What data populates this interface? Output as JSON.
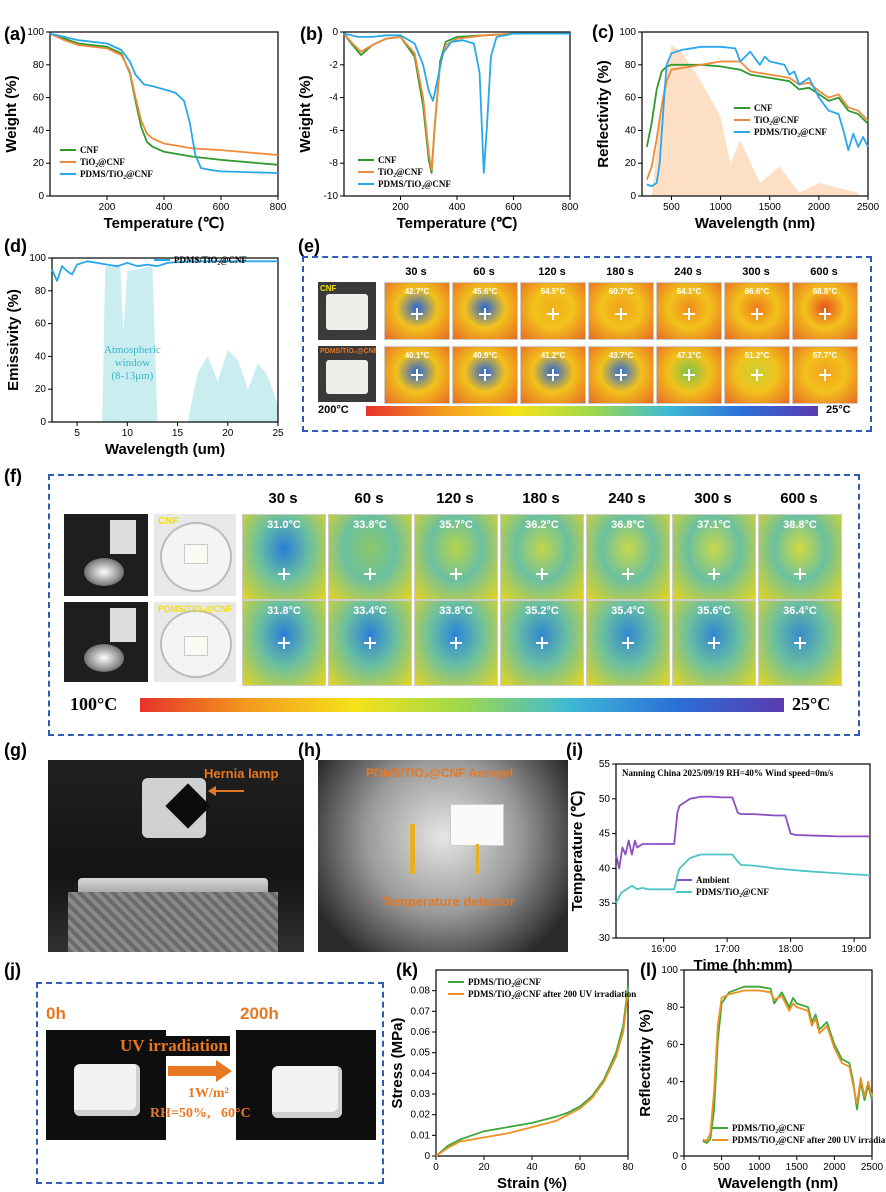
{
  "panels": {
    "a": "(a)",
    "b": "(b)",
    "c": "(c)",
    "d": "(d)",
    "e": "(e)",
    "f": "(f)",
    "g": "(g)",
    "h": "(h)",
    "i": "(i)",
    "j": "(j)",
    "k": "(k)",
    "l": "(l)"
  },
  "legend_names": {
    "cnf": "CNF",
    "tio2": "TiO₂@CNF",
    "pdms": "PDMS/TiO₂@CNF",
    "pdms_uv": "PDMS/TiO₂@CNF after 200 UV irradiation",
    "ambient": "Ambient"
  },
  "colors": {
    "cnf": "#2e9a2e",
    "tio2": "#f08a3a",
    "pdms": "#2aa7ea",
    "ambient": "#8a4fc2",
    "pdms_i": "#4fc4c4",
    "green_k": "#3aa83a",
    "orange_k": "#f09020"
  },
  "chart_data": [
    {
      "id": "a",
      "type": "line",
      "xlabel": "Temperature (℃)",
      "ylabel": "Weight (%)",
      "xlim": [
        0,
        800
      ],
      "ylim": [
        0,
        100
      ],
      "xticks": [
        200,
        400,
        600,
        800
      ],
      "yticks": [
        0,
        20,
        40,
        60,
        80,
        100
      ],
      "series": [
        {
          "name": "CNF",
          "key": "cnf",
          "x": [
            0,
            50,
            100,
            200,
            250,
            280,
            300,
            320,
            340,
            360,
            400,
            500,
            600,
            800
          ],
          "y": [
            99,
            96,
            93,
            91,
            87,
            75,
            58,
            42,
            33,
            30,
            27,
            24,
            22,
            19
          ]
        },
        {
          "name": "TiO₂@CNF",
          "key": "tio2",
          "x": [
            0,
            50,
            100,
            200,
            250,
            280,
            300,
            320,
            340,
            360,
            400,
            500,
            600,
            800
          ],
          "y": [
            99,
            95,
            92,
            90,
            86,
            76,
            60,
            46,
            38,
            35,
            32,
            29,
            28,
            25
          ]
        },
        {
          "name": "PDMS/TiO₂@CNF",
          "key": "pdms",
          "x": [
            0,
            50,
            100,
            200,
            250,
            280,
            300,
            330,
            360,
            400,
            440,
            470,
            490,
            510,
            530,
            560,
            600,
            800
          ],
          "y": [
            99,
            97,
            95,
            93,
            89,
            82,
            74,
            68,
            67,
            65,
            63,
            58,
            45,
            25,
            17,
            16,
            15,
            14
          ]
        }
      ]
    },
    {
      "id": "b",
      "type": "line",
      "xlabel": "Temperature (℃)",
      "ylabel": "Weight (%)",
      "xlim": [
        0,
        800
      ],
      "ylim": [
        -10,
        0
      ],
      "xticks": [
        200,
        400,
        600,
        800
      ],
      "yticks": [
        -10,
        -8,
        -6,
        -4,
        -2,
        0
      ],
      "series": [
        {
          "name": "CNF",
          "key": "cnf",
          "x": [
            0,
            30,
            60,
            100,
            150,
            200,
            250,
            280,
            300,
            310,
            320,
            340,
            360,
            400,
            500,
            600,
            800
          ],
          "y": [
            -0.1,
            -0.8,
            -1.4,
            -0.8,
            -0.4,
            -0.3,
            -1.5,
            -4.5,
            -7.8,
            -8.6,
            -6,
            -1.8,
            -0.6,
            -0.3,
            -0.2,
            -0.1,
            -0.1
          ]
        },
        {
          "name": "TiO₂@CNF",
          "key": "tio2",
          "x": [
            0,
            30,
            60,
            100,
            150,
            200,
            250,
            280,
            300,
            310,
            320,
            340,
            360,
            400,
            500,
            600,
            800
          ],
          "y": [
            -0.1,
            -0.7,
            -1.2,
            -0.8,
            -0.4,
            -0.3,
            -1.3,
            -4,
            -7.4,
            -8.4,
            -6,
            -2,
            -0.8,
            -0.4,
            -0.2,
            -0.1,
            -0.1
          ]
        },
        {
          "name": "PDMS/TiO₂@CNF",
          "key": "pdms",
          "x": [
            0,
            50,
            100,
            150,
            200,
            250,
            280,
            300,
            315,
            330,
            350,
            380,
            420,
            460,
            480,
            495,
            505,
            520,
            540,
            600,
            800
          ],
          "y": [
            -0.1,
            -0.3,
            -0.3,
            -0.2,
            -0.2,
            -0.7,
            -2,
            -3.6,
            -4.2,
            -3,
            -1.3,
            -0.6,
            -0.5,
            -0.7,
            -2.5,
            -8.6,
            -6,
            -1.5,
            -0.3,
            -0.1,
            -0.1
          ]
        }
      ]
    },
    {
      "id": "c",
      "type": "line",
      "xlabel": "Wavelength (nm)",
      "ylabel": "Reflectivity (%)",
      "xlim": [
        200,
        2500
      ],
      "ylim": [
        0,
        100
      ],
      "xticks": [
        500,
        1000,
        1500,
        2000,
        2500
      ],
      "yticks": [
        0,
        20,
        40,
        60,
        80,
        100
      ],
      "series": [
        {
          "name": "CNF",
          "key": "cnf",
          "x": [
            250,
            300,
            350,
            400,
            450,
            500,
            600,
            800,
            1000,
            1100,
            1200,
            1300,
            1500,
            1700,
            1800,
            1900,
            2000,
            2100,
            2200,
            2300,
            2400,
            2500
          ],
          "y": [
            30,
            45,
            65,
            76,
            79,
            80,
            80,
            80,
            79,
            78,
            77,
            74,
            72,
            70,
            65,
            66,
            62,
            58,
            60,
            52,
            50,
            44
          ]
        },
        {
          "name": "TiO₂@CNF",
          "key": "tio2",
          "x": [
            250,
            300,
            350,
            400,
            450,
            500,
            600,
            800,
            1000,
            1100,
            1200,
            1300,
            1500,
            1700,
            1800,
            1900,
            2000,
            2100,
            2200,
            2300,
            2400,
            2500
          ],
          "y": [
            10,
            18,
            35,
            55,
            70,
            77,
            78,
            80,
            82,
            82,
            82,
            76,
            74,
            72,
            68,
            69,
            64,
            60,
            62,
            54,
            52,
            46
          ]
        },
        {
          "name": "PDMS/TiO₂@CNF",
          "key": "pdms",
          "x": [
            250,
            300,
            350,
            380,
            420,
            450,
            500,
            600,
            800,
            1000,
            1150,
            1200,
            1300,
            1400,
            1450,
            1500,
            1650,
            1700,
            1750,
            1800,
            1900,
            2000,
            2100,
            2200,
            2250,
            2300,
            2350,
            2400,
            2450,
            2500
          ],
          "y": [
            7,
            6,
            8,
            20,
            55,
            80,
            87,
            89,
            91,
            91,
            90,
            82,
            88,
            80,
            85,
            82,
            80,
            74,
            76,
            68,
            72,
            60,
            52,
            50,
            40,
            28,
            38,
            30,
            36,
            30
          ]
        }
      ],
      "shade": "solar"
    },
    {
      "id": "d",
      "type": "line",
      "xlabel": "Wavelength (um)",
      "ylabel": "Emissivity (%)",
      "xlim": [
        2.5,
        25
      ],
      "ylim": [
        0,
        100
      ],
      "xticks": [
        5,
        10,
        15,
        20,
        25
      ],
      "yticks": [
        0,
        20,
        40,
        60,
        80,
        100
      ],
      "annotation": [
        "Atmospheric",
        "window",
        "(8-13μm)"
      ],
      "series": [
        {
          "name": "PDMS/TiO₂@CNF",
          "key": "pdms",
          "x": [
            2.5,
            3,
            3.5,
            4,
            4.5,
            5,
            6,
            7,
            8,
            9,
            10,
            11,
            12,
            13,
            14,
            16,
            18,
            20,
            22,
            24,
            25
          ],
          "y": [
            93,
            86,
            95,
            92,
            90,
            96,
            98,
            97,
            96,
            95,
            97,
            95,
            96,
            95,
            97,
            98,
            98,
            98,
            98,
            98,
            98
          ]
        }
      ]
    },
    {
      "id": "i",
      "type": "line",
      "xlabel": "Time (hh:mm)",
      "ylabel": "Temperature (℃)",
      "title": "Nanning China 2025/09/19 RH=40% Wind speed=0m/s",
      "xlim": [
        0,
        240
      ],
      "ylim": [
        30,
        55
      ],
      "xticks": [
        45,
        105,
        165,
        225
      ],
      "xticklabels": [
        "16:00",
        "17:00",
        "18:00",
        "19:00"
      ],
      "yticks": [
        30,
        35,
        40,
        45,
        50,
        55
      ],
      "series": [
        {
          "name": "Ambient",
          "key": "ambient",
          "x": [
            0,
            3,
            6,
            9,
            12,
            15,
            18,
            20,
            25,
            30,
            40,
            55,
            58,
            60,
            70,
            80,
            90,
            100,
            110,
            115,
            118,
            130,
            150,
            160,
            165,
            170,
            190,
            210,
            240
          ],
          "y": [
            42,
            40,
            43,
            42,
            44,
            42,
            44,
            43,
            43.5,
            43.5,
            43.5,
            43.5,
            48,
            49,
            50,
            50.3,
            50.3,
            50.2,
            50.2,
            48,
            47.8,
            47.8,
            47.6,
            47.6,
            45,
            44.8,
            44.7,
            44.6,
            44.6
          ]
        },
        {
          "name": "PDMS/TiO₂@CNF",
          "key": "pdms_i",
          "x": [
            0,
            5,
            10,
            15,
            20,
            25,
            30,
            40,
            55,
            58,
            60,
            70,
            80,
            90,
            100,
            110,
            115,
            118,
            130,
            150,
            165,
            180,
            200,
            220,
            240
          ],
          "y": [
            35,
            36.5,
            37,
            37.5,
            37,
            37.2,
            37,
            37,
            37,
            39,
            40,
            41.5,
            42,
            42,
            42,
            42,
            41,
            40.5,
            40.4,
            40,
            39.8,
            39.6,
            39.4,
            39.2,
            39
          ]
        }
      ]
    },
    {
      "id": "k",
      "type": "line",
      "xlabel": "Strain (%)",
      "ylabel": "Stress (MPa)",
      "xlim": [
        0,
        80
      ],
      "ylim": [
        0,
        0.09
      ],
      "xticks": [
        0,
        20,
        40,
        60,
        80
      ],
      "yticks": [
        0,
        0.01,
        0.02,
        0.03,
        0.04,
        0.05,
        0.06,
        0.07,
        0.08
      ],
      "series": [
        {
          "name": "PDMS/TiO₂@CNF",
          "key": "green_k",
          "x": [
            0,
            5,
            10,
            15,
            20,
            30,
            40,
            50,
            55,
            60,
            65,
            70,
            75,
            78,
            80
          ],
          "y": [
            0,
            0.005,
            0.008,
            0.01,
            0.012,
            0.014,
            0.016,
            0.019,
            0.021,
            0.024,
            0.029,
            0.037,
            0.05,
            0.063,
            0.082
          ]
        },
        {
          "name": "PDMS/TiO₂@CNF after 200 UV irradiation",
          "key": "orange_k",
          "x": [
            0,
            5,
            10,
            15,
            20,
            30,
            40,
            50,
            55,
            60,
            65,
            70,
            75,
            78,
            80
          ],
          "y": [
            0,
            0.004,
            0.007,
            0.008,
            0.009,
            0.011,
            0.014,
            0.017,
            0.02,
            0.023,
            0.028,
            0.036,
            0.048,
            0.06,
            0.079
          ]
        }
      ]
    },
    {
      "id": "l",
      "type": "line",
      "xlabel": "Wavelength (nm)",
      "ylabel": "Reflectivity (%)",
      "xlim": [
        0,
        2500
      ],
      "ylim": [
        0,
        100
      ],
      "xticks": [
        0,
        500,
        1000,
        1500,
        2000,
        2500
      ],
      "yticks": [
        0,
        20,
        40,
        60,
        80,
        100
      ],
      "series": [
        {
          "name": "PDMS/TiO₂@CNF",
          "key": "green_k",
          "x": [
            250,
            300,
            350,
            400,
            450,
            500,
            600,
            800,
            1000,
            1150,
            1200,
            1300,
            1400,
            1450,
            1500,
            1650,
            1700,
            1750,
            1800,
            1900,
            2000,
            2100,
            2200,
            2250,
            2300,
            2350,
            2400,
            2450,
            2500
          ],
          "y": [
            8,
            7,
            9,
            25,
            62,
            82,
            88,
            91,
            91,
            90,
            82,
            88,
            80,
            85,
            82,
            80,
            72,
            76,
            68,
            72,
            60,
            52,
            50,
            40,
            25,
            40,
            30,
            38,
            30
          ]
        },
        {
          "name": "PDMS/TiO₂@CNF after 200 UV irradiation",
          "key": "orange_k",
          "x": [
            250,
            300,
            350,
            400,
            450,
            500,
            600,
            800,
            1000,
            1150,
            1200,
            1300,
            1400,
            1450,
            1500,
            1650,
            1700,
            1750,
            1800,
            1900,
            2000,
            2100,
            2200,
            2250,
            2300,
            2350,
            2400,
            2450,
            2500
          ],
          "y": [
            9,
            8,
            12,
            35,
            70,
            85,
            87,
            89,
            89,
            88,
            84,
            86,
            78,
            82,
            80,
            78,
            70,
            74,
            66,
            70,
            58,
            50,
            48,
            38,
            28,
            42,
            32,
            40,
            32
          ]
        }
      ]
    }
  ],
  "panel_e": {
    "times": [
      "30 s",
      "60 s",
      "120 s",
      "180 s",
      "240 s",
      "300 s",
      "600 s"
    ],
    "row1_sample": "CNF",
    "row2_sample": "PDMS/TiO₂@CNF",
    "row1_temps": [
      "42.7°C",
      "45.6°C",
      "54.5°C",
      "60.7°C",
      "64.1°C",
      "66.6°C",
      "68.8°C"
    ],
    "row2_temps": [
      "40.1°C",
      "40.9°C",
      "41.2°C",
      "43.7°C",
      "47.1°C",
      "51.2°C",
      "57.7°C"
    ],
    "scale_hot": "200°C",
    "scale_cold": "25°C"
  },
  "panel_f": {
    "times": [
      "30 s",
      "60 s",
      "120 s",
      "180 s",
      "240 s",
      "300 s",
      "600 s"
    ],
    "row1_sample": "CNF",
    "row2_sample": "PDMS/TiO₂@CNF",
    "row1_temps": [
      "31.0°C",
      "33.8°C",
      "35.7°C",
      "36.2°C",
      "36.8°C",
      "37.1°C",
      "38.8°C"
    ],
    "row2_temps": [
      "31.8°C",
      "33.4°C",
      "33.8°C",
      "35.2°C",
      "35.4°C",
      "35.6°C",
      "36.4°C"
    ],
    "scale_hot": "100°C",
    "scale_cold": "25°C"
  },
  "panel_g": {
    "label": "Hernia lamp"
  },
  "panel_h": {
    "aerogel": "PDMS/TiO₂@CNF Aerogel",
    "detector": "Temperature detector"
  },
  "panel_j": {
    "start": "0h",
    "end": "200h",
    "process": "UV irradiation",
    "intensity": "1W/m²",
    "conditions": "RH=50%,   60°C"
  }
}
